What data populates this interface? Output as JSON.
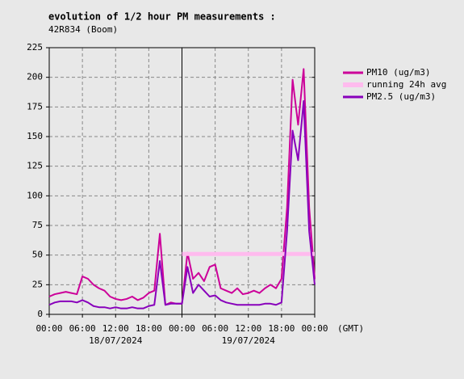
{
  "chart_data": {
    "type": "line",
    "title": "evolution of 1/2 hour PM measurements :",
    "subtitle": "42R834 (Boom)",
    "x_unit_label": "(GMT)",
    "x": [
      0,
      1,
      2,
      3,
      4,
      5,
      6,
      7,
      8,
      9,
      10,
      11,
      12,
      13,
      14,
      15,
      16,
      17,
      18,
      19,
      20,
      21,
      22,
      23,
      24,
      25,
      26,
      27,
      28,
      29,
      30,
      31,
      32,
      33,
      34,
      35,
      36,
      37,
      38,
      39,
      40,
      41,
      42,
      43,
      44,
      45,
      46,
      47,
      48
    ],
    "xlim": [
      0,
      48
    ],
    "xticks": [
      {
        "value": 0,
        "label": "00:00"
      },
      {
        "value": 6,
        "label": "06:00"
      },
      {
        "value": 12,
        "label": "12:00"
      },
      {
        "value": 18,
        "label": "18:00"
      },
      {
        "value": 24,
        "label": "00:00"
      },
      {
        "value": 30,
        "label": "06:00"
      },
      {
        "value": 36,
        "label": "12:00"
      },
      {
        "value": 42,
        "label": "18:00"
      },
      {
        "value": 48,
        "label": "00:00"
      }
    ],
    "x_date_labels": [
      {
        "value": 12,
        "label": "18/07/2024"
      },
      {
        "value": 36,
        "label": "19/07/2024"
      }
    ],
    "ylim": [
      0,
      225
    ],
    "yticks": [
      0,
      25,
      50,
      75,
      100,
      125,
      150,
      175,
      200,
      225
    ],
    "grid": true,
    "legend": "right",
    "series": [
      {
        "name": "PM10 (ug/m3)",
        "color": "#cc0099",
        "width": 2,
        "values": [
          15,
          17,
          18,
          19,
          18,
          17,
          32,
          30,
          25,
          22,
          20,
          15,
          13,
          12,
          13,
          15,
          12,
          14,
          18,
          20,
          68,
          8,
          10,
          9,
          9,
          52,
          30,
          35,
          28,
          40,
          42,
          22,
          20,
          18,
          22,
          17,
          18,
          20,
          18,
          22,
          25,
          22,
          30,
          90,
          198,
          160,
          207,
          90,
          30
        ]
      },
      {
        "name": "running 24h avg",
        "color": "#ffbbee",
        "width": 5,
        "values": [
          null,
          null,
          null,
          null,
          null,
          null,
          null,
          null,
          null,
          null,
          null,
          null,
          null,
          null,
          null,
          null,
          null,
          null,
          null,
          null,
          null,
          null,
          null,
          null,
          51,
          51,
          51,
          51,
          51,
          51,
          51,
          51,
          51,
          51,
          51,
          51,
          51,
          51,
          51,
          51,
          51,
          51,
          51,
          51,
          51,
          51,
          51,
          51,
          51
        ]
      },
      {
        "name": "PM2.5 (ug/m3)",
        "color": "#8800bb",
        "width": 2,
        "values": [
          8,
          10,
          11,
          11,
          11,
          10,
          12,
          10,
          7,
          6,
          6,
          5,
          6,
          5,
          5,
          6,
          5,
          5,
          7,
          8,
          45,
          8,
          9,
          9,
          9,
          40,
          18,
          25,
          20,
          15,
          16,
          12,
          10,
          9,
          8,
          8,
          8,
          8,
          8,
          9,
          9,
          8,
          10,
          70,
          155,
          130,
          180,
          70,
          25
        ]
      }
    ]
  }
}
